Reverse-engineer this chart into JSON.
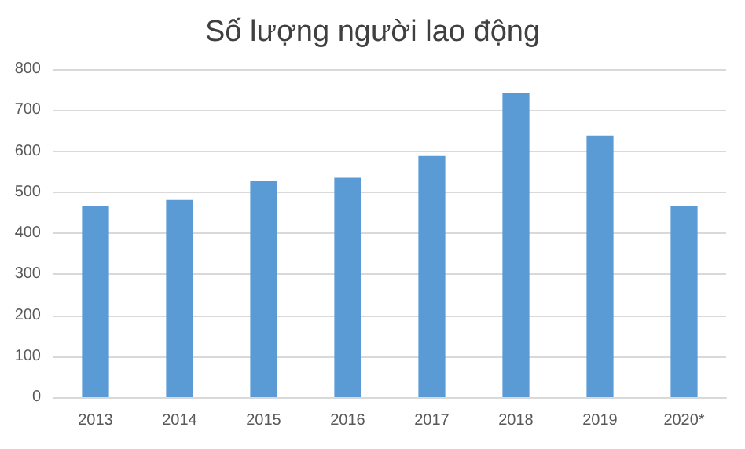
{
  "chart_data": {
    "type": "bar",
    "title": "Số lượng người lao động",
    "categories": [
      "2013",
      "2014",
      "2015",
      "2016",
      "2017",
      "2018",
      "2019",
      "2020*"
    ],
    "values": [
      465,
      481,
      527,
      535,
      588,
      742,
      638,
      465
    ],
    "color": "#5b9bd5",
    "ylim": [
      0,
      800
    ],
    "yticks": [
      0,
      100,
      200,
      300,
      400,
      500,
      600,
      700,
      800
    ],
    "grid": "y"
  }
}
